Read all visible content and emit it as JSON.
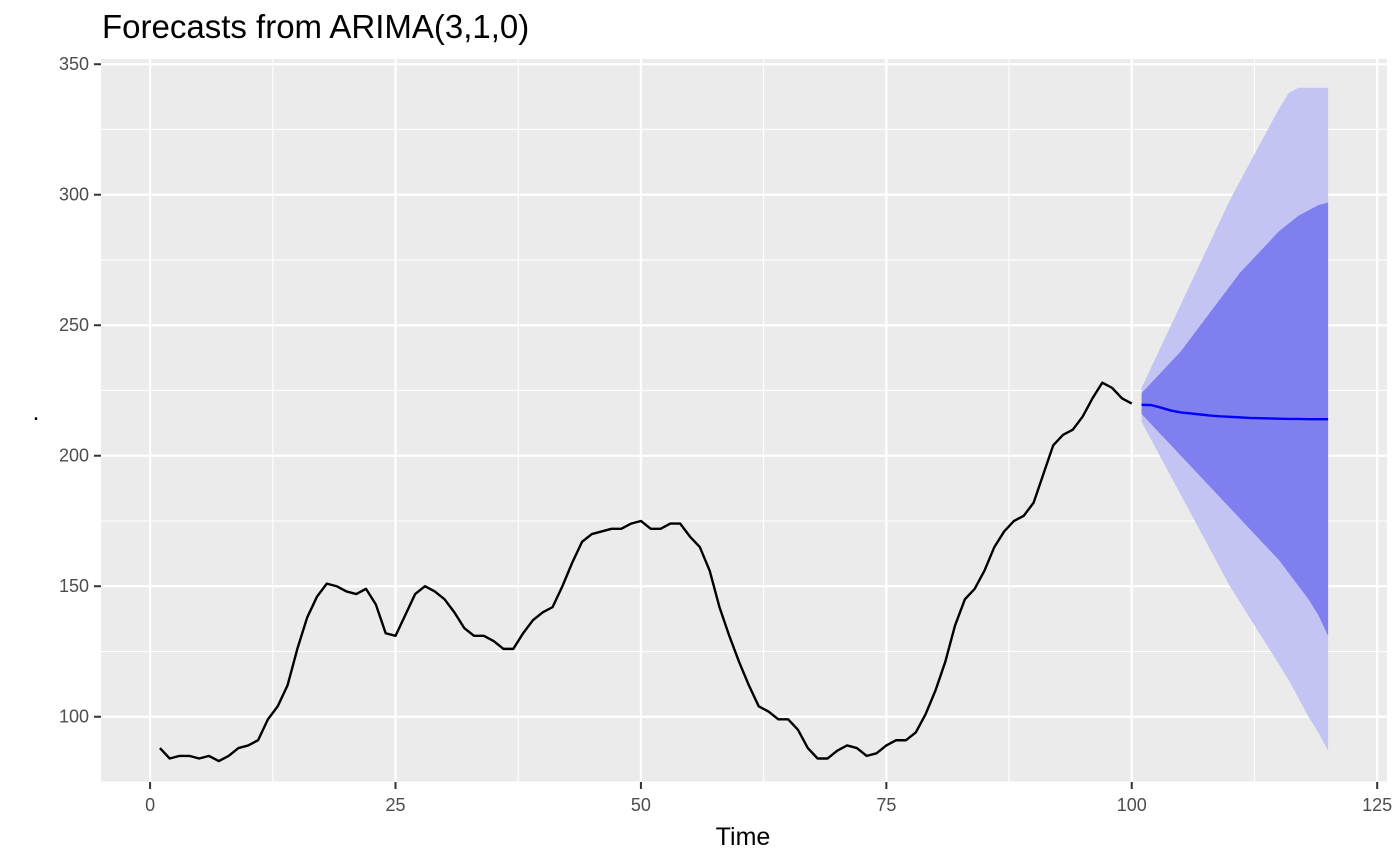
{
  "chart_data": {
    "type": "line",
    "title": "Forecasts from ARIMA(3,1,0)",
    "xlabel": "Time",
    "ylabel": ".",
    "xlim": [
      -5,
      126
    ],
    "ylim": [
      75,
      352
    ],
    "x_ticks": [
      0,
      25,
      50,
      75,
      100,
      125
    ],
    "y_ticks": [
      100,
      150,
      200,
      250,
      300,
      350
    ],
    "grid": true,
    "colors": {
      "panel": "#EBEBEB",
      "grid": "#FFFFFF",
      "series": "#000000",
      "forecast": "#0000FF",
      "band80": "#7F7FEF",
      "band95": "#C4C4F4"
    },
    "series": [
      {
        "x": [
          1,
          2,
          3,
          4,
          5,
          6,
          7,
          8,
          9,
          10,
          11,
          12,
          13,
          14,
          15,
          16,
          17,
          18,
          19,
          20,
          21,
          22,
          23,
          24,
          25,
          26,
          27,
          28,
          29,
          30,
          31,
          32,
          33,
          34,
          35,
          36,
          37,
          38,
          39,
          40,
          41,
          42,
          43,
          44,
          45,
          46,
          47,
          48,
          49,
          50,
          51,
          52,
          53,
          54,
          55,
          56,
          57,
          58,
          59,
          60,
          61,
          62,
          63,
          64,
          65,
          66,
          67,
          68,
          69,
          70,
          71,
          72,
          73,
          74,
          75,
          76,
          77,
          78,
          79,
          80,
          81,
          82,
          83,
          84,
          85,
          86,
          87,
          88,
          89,
          90,
          91,
          92,
          93,
          94,
          95,
          96,
          97,
          98,
          99,
          100
        ],
        "values": [
          88,
          84,
          85,
          85,
          84,
          85,
          83,
          85,
          88,
          89,
          91,
          99,
          104,
          112,
          126,
          138,
          146,
          151,
          150,
          148,
          147,
          149,
          143,
          132,
          131,
          139,
          147,
          150,
          148,
          145,
          140,
          134,
          131,
          131,
          129,
          126,
          126,
          132,
          137,
          140,
          142,
          150,
          159,
          167,
          170,
          171,
          172,
          172,
          174,
          175,
          172,
          172,
          174,
          174,
          169,
          165,
          156,
          142,
          131,
          121,
          112,
          104,
          102,
          99,
          99,
          95,
          88,
          84,
          84,
          87,
          89,
          88,
          85,
          86,
          89,
          91,
          91,
          94,
          101,
          110,
          121,
          135,
          145,
          149,
          156,
          165,
          171,
          175,
          177,
          182,
          193,
          204,
          208,
          210,
          215,
          222,
          228,
          226,
          222,
          220
        ]
      },
      {
        "name": "forecast",
        "x": [
          101,
          102,
          103,
          104,
          105,
          106,
          107,
          108,
          109,
          110,
          111,
          112,
          113,
          114,
          115,
          116,
          117,
          118,
          119,
          120
        ],
        "values": [
          219.5,
          219.4,
          218.4,
          217.3,
          216.6,
          216.2,
          215.8,
          215.4,
          215.1,
          214.9,
          214.7,
          214.5,
          214.4,
          214.3,
          214.2,
          214.1,
          214.1,
          214.0,
          214.0,
          214.0
        ],
        "lo80": [
          216,
          212,
          208,
          204,
          200,
          196,
          192,
          188,
          184,
          180,
          176,
          172,
          168,
          164,
          160,
          155,
          150,
          145,
          139,
          131
        ],
        "hi80": [
          224,
          228,
          232,
          236,
          240,
          245,
          250,
          255,
          260,
          265,
          270,
          274,
          278,
          282,
          286,
          289,
          292,
          294,
          296,
          297
        ],
        "lo95": [
          213,
          206,
          199,
          192,
          185,
          178,
          171,
          164,
          157,
          150,
          144,
          138,
          132,
          126,
          120,
          114,
          107,
          100,
          94,
          87
        ],
        "hi95": [
          226,
          234,
          242,
          250,
          258,
          266,
          274,
          282,
          290,
          298,
          305,
          312,
          319,
          326,
          333,
          339,
          341,
          341,
          341,
          341
        ]
      }
    ]
  }
}
